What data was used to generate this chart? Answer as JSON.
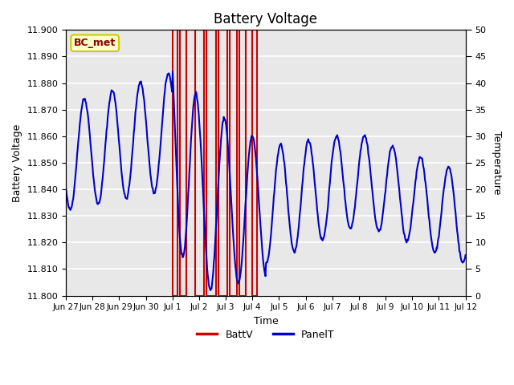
{
  "title": "Battery Voltage",
  "ylabel_left": "Battery Voltage",
  "ylabel_right": "Temperature",
  "xlabel": "Time",
  "ylim_left": [
    11.8,
    11.9
  ],
  "ylim_right": [
    0,
    50
  ],
  "plot_bg_color": "#e8e8e8",
  "grid_color": "white",
  "label_box_text": "BC_met",
  "label_box_bg": "#ffffcc",
  "label_box_edge": "#cccc00",
  "red_rect_spans": [
    [
      4.0,
      4.18
    ],
    [
      4.28,
      4.52
    ],
    [
      4.85,
      5.18
    ],
    [
      5.28,
      5.62
    ],
    [
      5.72,
      6.05
    ],
    [
      6.15,
      6.42
    ],
    [
      6.52,
      6.75
    ],
    [
      7.0,
      7.18
    ]
  ],
  "x_tick_labels": [
    "Jun 27",
    "Jun 28",
    "Jun 29",
    "Jun 30",
    "Jul 1",
    "Jul 2",
    "Jul 3",
    "Jul 4",
    "Jul 5",
    "Jul 6",
    "Jul 7",
    "Jul 8",
    "Jul 9",
    "Jul 10",
    "Jul 11",
    "Jul 12"
  ],
  "x_tick_positions": [
    0,
    1,
    2,
    3,
    4,
    5,
    6,
    7,
    8,
    9,
    10,
    11,
    12,
    13,
    14,
    15
  ],
  "line_color_batt": "#cc0000",
  "line_color_panel": "#0000cc",
  "legend_batt": "BattV",
  "legend_panel": "PanelT"
}
